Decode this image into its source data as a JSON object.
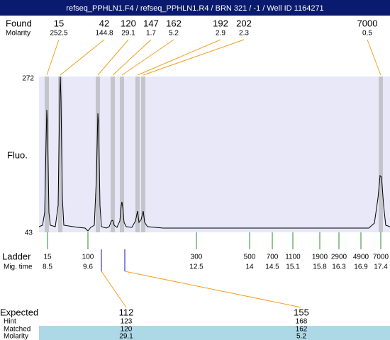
{
  "header": {
    "title": "refseq_PPHLN1.F4 / refseq_PPHLN1.R4 / BRN 321  / -1  / Well ID 1164271"
  },
  "found": {
    "label": "Found",
    "molarity_label": "Molarity",
    "sizes": [
      15,
      42,
      120,
      147,
      162,
      192,
      202,
      7000
    ],
    "molarity": [
      252.5,
      144.8,
      29.1,
      1.7,
      5.2,
      2.9,
      2.3,
      0.5
    ]
  },
  "plot": {
    "y_label": "Fluo.",
    "y_max": 272,
    "y_min": 43
  },
  "ladder": {
    "label": "Ladder",
    "time_label": "Mig. time",
    "sizes": [
      15,
      100,
      300,
      500,
      700,
      1100,
      1900,
      2900,
      4900,
      7000
    ],
    "times": [
      8.5,
      9.6,
      12.5,
      14,
      14.5,
      15.1,
      15.8,
      16.3,
      16.9,
      17.4
    ]
  },
  "expected": {
    "labels": [
      "Expected",
      "Hint",
      "Matched",
      "Molarity"
    ],
    "rows": [
      [
        112,
        155
      ],
      [
        123,
        168
      ],
      [
        120,
        162
      ],
      [
        29.1,
        5.2
      ]
    ]
  }
}
